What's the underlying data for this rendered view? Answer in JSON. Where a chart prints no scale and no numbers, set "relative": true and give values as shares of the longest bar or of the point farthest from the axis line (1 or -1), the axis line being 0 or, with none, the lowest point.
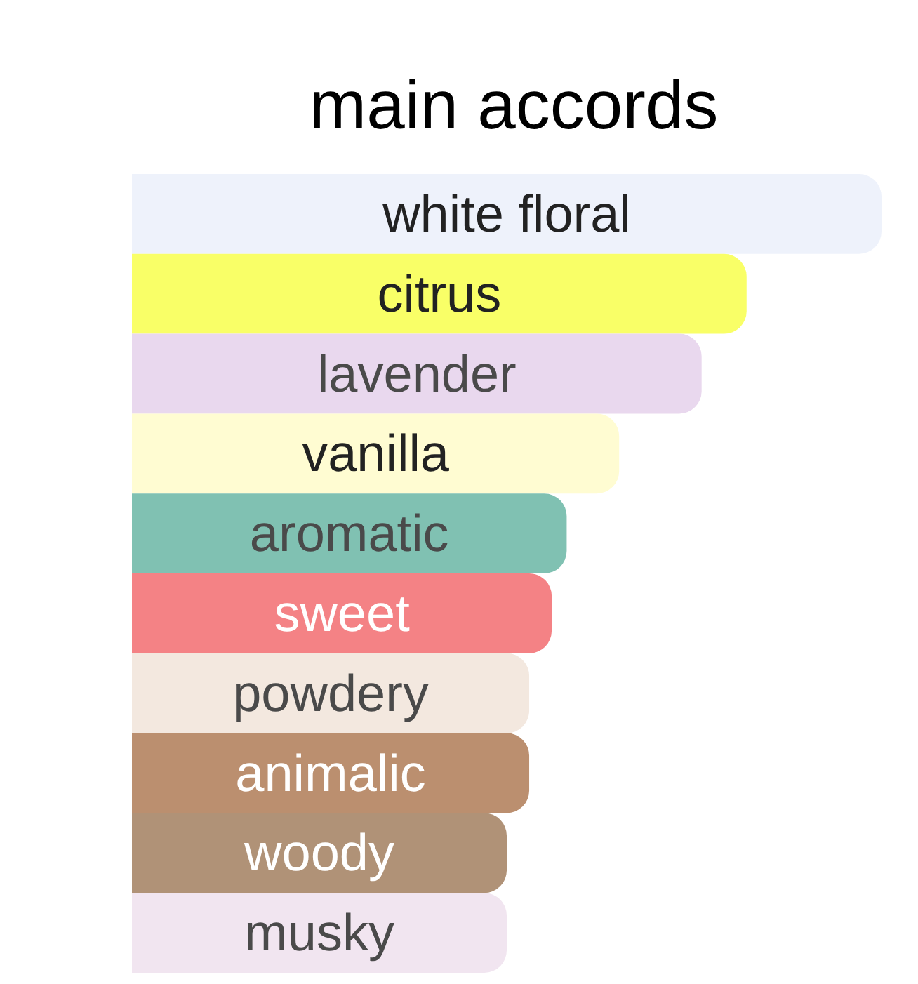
{
  "chart_data": {
    "type": "bar",
    "title": "main accords",
    "orientation": "horizontal",
    "relative": true,
    "categories": [
      "white floral",
      "citrus",
      "lavender",
      "vanilla",
      "aromatic",
      "sweet",
      "powdery",
      "animalic",
      "woody",
      "musky"
    ],
    "values": [
      1,
      0.82,
      0.76,
      0.65,
      0.58,
      0.56,
      0.53,
      0.53,
      0.5,
      0.5
    ],
    "colors": [
      "#eef2fb",
      "#f9ff67",
      "#e9d8ee",
      "#fffcd2",
      "#80c1b2",
      "#f48285",
      "#f3e8df",
      "#bb8f6f",
      "#b09277",
      "#f1e5f0"
    ]
  }
}
